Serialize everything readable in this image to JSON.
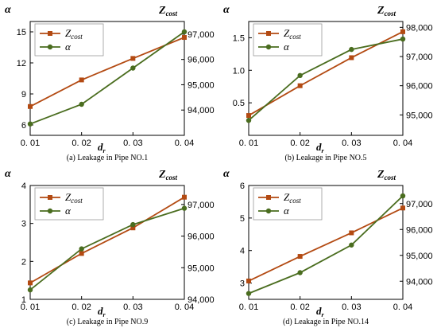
{
  "chart_data": [
    {
      "type": "line",
      "caption": "(a) Leakage in Pipe NO.1",
      "xlabel": "d",
      "xlabel_sub": "r",
      "x_tick_labels": [
        "0. 01",
        "0. 02",
        "0. 03",
        "0. 04"
      ],
      "x": [
        0.01,
        0.02,
        0.03,
        0.04
      ],
      "left_axis": {
        "label": "α",
        "ylim": [
          5,
          16
        ],
        "ticks": [
          "6",
          "9",
          "12",
          "15"
        ],
        "tick_values": [
          6,
          9,
          12,
          15
        ]
      },
      "right_axis": {
        "label": "Z",
        "label_sub": "cost",
        "ylim": [
          93000,
          97500
        ],
        "ticks": [
          "94,000",
          "95,000",
          "96,000",
          "97,000"
        ],
        "tick_values": [
          94000,
          95000,
          96000,
          97000
        ]
      },
      "series": [
        {
          "name": "Z",
          "name_sub": "cost",
          "axis": "right",
          "color": "#b34a12",
          "marker": "square",
          "values": [
            94140,
            95190,
            96040,
            96870
          ]
        },
        {
          "name": "α",
          "axis": "left",
          "color": "#4a6d1f",
          "marker": "circle",
          "values": [
            6.1,
            8.0,
            11.5,
            15.0
          ]
        }
      ],
      "legend_position": "top-left",
      "grid": false
    },
    {
      "type": "line",
      "caption": "(b) Leakage in Pipe NO.5",
      "xlabel": "d",
      "xlabel_sub": "r",
      "x_tick_labels": [
        "0. 01",
        "0. 02",
        "0. 03",
        "0. 04"
      ],
      "x": [
        0.01,
        0.02,
        0.03,
        0.04
      ],
      "left_axis": {
        "label": "α",
        "ylim": [
          0.0,
          1.75
        ],
        "ticks": [
          "0.5",
          "1.0",
          "1.5"
        ],
        "tick_values": [
          0.5,
          1.0,
          1.5
        ]
      },
      "right_axis": {
        "label": "Z",
        "label_sub": "cost",
        "ylim": [
          94300,
          98200
        ],
        "ticks": [
          "95,000",
          "96,000",
          "97,000",
          "98,000"
        ],
        "tick_values": [
          95000,
          96000,
          97000,
          98000
        ]
      },
      "series": [
        {
          "name": "Z",
          "name_sub": "cost",
          "axis": "right",
          "color": "#b34a12",
          "marker": "square",
          "values": [
            94980,
            96000,
            96960,
            97850
          ]
        },
        {
          "name": "α",
          "axis": "left",
          "color": "#4a6d1f",
          "marker": "circle",
          "values": [
            0.23,
            0.92,
            1.32,
            1.48
          ]
        }
      ],
      "legend_position": "top-left",
      "grid": false
    },
    {
      "type": "line",
      "caption": "(c) Leakage in Pipe NO.9",
      "xlabel": "d",
      "xlabel_sub": "r",
      "x_tick_labels": [
        "0. 01",
        "0. 02",
        "0. 03",
        "0. 04"
      ],
      "x": [
        0.01,
        0.02,
        0.03,
        0.04
      ],
      "left_axis": {
        "label": "α",
        "ylim": [
          1,
          4
        ],
        "ticks": [
          "1",
          "2",
          "3",
          "4"
        ],
        "tick_values": [
          1,
          2,
          3,
          4
        ]
      },
      "right_axis": {
        "label": "Z",
        "label_sub": "cost",
        "ylim": [
          94000,
          97600
        ],
        "ticks": [
          "94,000",
          "95,000",
          "96,000",
          "97,000"
        ],
        "tick_values": [
          94000,
          95000,
          96000,
          97000
        ]
      },
      "series": [
        {
          "name": "Z",
          "name_sub": "cost",
          "axis": "right",
          "color": "#b34a12",
          "marker": "square",
          "values": [
            94520,
            95450,
            96260,
            97230
          ]
        },
        {
          "name": "α",
          "axis": "left",
          "color": "#4a6d1f",
          "marker": "circle",
          "values": [
            1.25,
            2.33,
            2.97,
            3.4
          ]
        }
      ],
      "legend_position": "top-left",
      "grid": false
    },
    {
      "type": "line",
      "caption": "(d) Leakage in Pipe NO.14",
      "xlabel": "d",
      "xlabel_sub": "r",
      "x_tick_labels": [
        "0. 01",
        "0. 02",
        "0. 03",
        "0. 04"
      ],
      "x": [
        0.01,
        0.02,
        0.03,
        0.04
      ],
      "left_axis": {
        "label": "α",
        "ylim": [
          2.5,
          6
        ],
        "ticks": [
          "3",
          "4",
          "5",
          "6"
        ],
        "tick_values": [
          3,
          4,
          5,
          6
        ]
      },
      "right_axis": {
        "label": "Z",
        "label_sub": "cost",
        "ylim": [
          93300,
          97700
        ],
        "ticks": [
          "94,000",
          "95,000",
          "96,000",
          "97,000"
        ],
        "tick_values": [
          94000,
          95000,
          96000,
          97000
        ]
      },
      "series": [
        {
          "name": "Z",
          "name_sub": "cost",
          "axis": "right",
          "color": "#b34a12",
          "marker": "square",
          "values": [
            94010,
            94960,
            95870,
            96830
          ]
        },
        {
          "name": "α",
          "axis": "left",
          "color": "#4a6d1f",
          "marker": "circle",
          "values": [
            2.68,
            3.32,
            4.17,
            5.68
          ]
        }
      ],
      "legend_position": "top-left",
      "grid": false
    }
  ]
}
